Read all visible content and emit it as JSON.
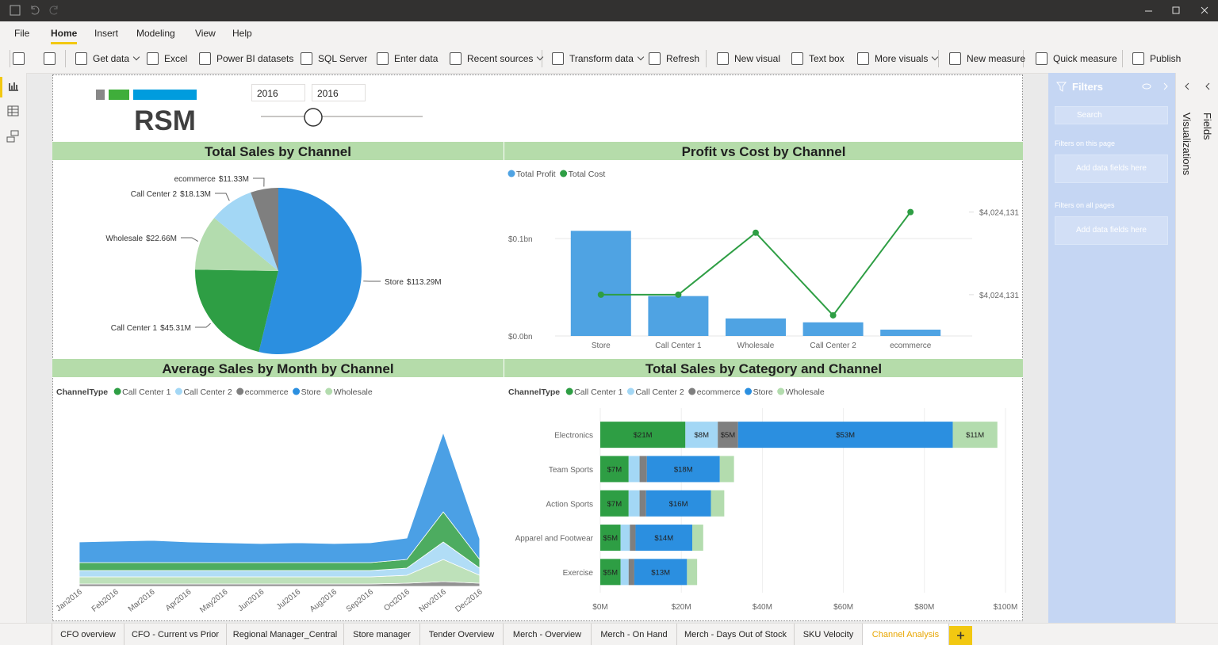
{
  "ribbon": {
    "tabs": [
      "File",
      "Home",
      "Insert",
      "Modeling",
      "View",
      "Help"
    ],
    "active_tab": 1,
    "buttons": [
      {
        "label": "Get data",
        "dropdown": true
      },
      {
        "label": "Excel"
      },
      {
        "label": "Power BI datasets"
      },
      {
        "label": "SQL Server"
      },
      {
        "label": "Enter data"
      },
      {
        "label": "Recent sources",
        "dropdown": true
      },
      {
        "label": "Transform data",
        "dropdown": true
      },
      {
        "label": "Refresh"
      },
      {
        "label": "New visual"
      },
      {
        "label": "Text box"
      },
      {
        "label": "More visuals",
        "dropdown": true
      },
      {
        "label": "New measure"
      },
      {
        "label": "Quick measure"
      },
      {
        "label": "Publish"
      }
    ]
  },
  "report": {
    "logo": "RSM",
    "slicer": {
      "from": "2016",
      "to": "2016"
    }
  },
  "chart_data": [
    {
      "type": "pie",
      "title": "Total Sales by Channel",
      "categories": [
        "Store",
        "Call Center 1",
        "Wholesale",
        "Call Center 2",
        "ecommerce"
      ],
      "values": [
        113.29,
        45.31,
        22.66,
        18.13,
        11.33
      ],
      "value_labels": [
        "$113.29M",
        "$45.31M",
        "$22.66M",
        "$18.13M",
        "$11.33M"
      ],
      "colors": [
        "#2b8fe0",
        "#2e9e44",
        "#b3dcae",
        "#a3d7f5",
        "#7f7f7f"
      ]
    },
    {
      "type": "combo",
      "title": "Profit vs Cost by Channel",
      "categories": [
        "Store",
        "Call Center 1",
        "Wholesale",
        "Call Center 2",
        "ecommerce"
      ],
      "series": [
        {
          "name": "Total Profit",
          "type": "bar",
          "color": "#4fa3e3",
          "values": [
            0.108,
            0.041,
            0.018,
            0.014,
            0.0065
          ]
        },
        {
          "name": "Total Cost",
          "type": "line",
          "axis": "y2",
          "color": "#2e9e44",
          "values": [
            4024130.6,
            4024130.6,
            4024131.2,
            4024130.4,
            4024131.4
          ]
        }
      ],
      "ylim": [
        0,
        0.14
      ],
      "yticks": [
        {
          "value": 0,
          "label": "$0.0bn"
        },
        {
          "value": 0.1,
          "label": "$0.1bn"
        }
      ],
      "y2lim": [
        4024130.2,
        4024131.52
      ],
      "y2ticks": [
        {
          "value": 4024130.6,
          "label": "$4,024,131"
        },
        {
          "value": 4024131.4,
          "label": "$4,024,131"
        }
      ],
      "grid": true
    },
    {
      "type": "area",
      "title": "Average Sales by Month by Channel",
      "legend_title": "ChannelType",
      "categories": [
        "Jan2016",
        "Feb2016",
        "Mar2016",
        "Apr2016",
        "May2016",
        "Jun2016",
        "Jul2016",
        "Aug2016",
        "Sep2016",
        "Oct2016",
        "Nov2016",
        "Dec2016"
      ],
      "series": [
        {
          "name": "Call Center 1",
          "color": "#2e9e44",
          "values": [
            10,
            10,
            10,
            10,
            10,
            10,
            10,
            10,
            10,
            11,
            38,
            11
          ]
        },
        {
          "name": "Call Center 2",
          "color": "#a3d7f5",
          "values": [
            8,
            8,
            8,
            8,
            8,
            8,
            8,
            8,
            8,
            9,
            22,
            9
          ]
        },
        {
          "name": "ecommerce",
          "color": "#7f7f7f",
          "values": [
            3,
            3,
            3,
            3,
            3,
            3,
            3,
            3,
            3,
            4,
            6,
            4
          ]
        },
        {
          "name": "Store",
          "color": "#2b8fe0",
          "values": [
            26,
            27,
            28,
            26,
            25,
            24,
            25,
            24,
            25,
            27,
            100,
            26
          ]
        },
        {
          "name": "Wholesale",
          "color": "#b3dcae",
          "values": [
            9,
            9,
            9,
            9,
            9,
            9,
            9,
            9,
            9,
            10,
            28,
            10
          ]
        }
      ],
      "ylim": [
        0,
        200
      ]
    },
    {
      "type": "stacked_bar",
      "title": "Total Sales by Category and Channel",
      "legend_title": "ChannelType",
      "categories": [
        "Electronics",
        "Team Sports",
        "Action Sports",
        "Apparel and Footwear",
        "Exercise"
      ],
      "series": [
        {
          "name": "Call Center 1",
          "color": "#2e9e44",
          "values": [
            21,
            7,
            7,
            5,
            5
          ],
          "value_labels": [
            "$21M",
            "$7M",
            "$7M",
            "$5M",
            "$5M"
          ]
        },
        {
          "name": "Call Center 2",
          "color": "#a3d7f5",
          "values": [
            8,
            2.7,
            2.7,
            2.3,
            2
          ],
          "value_labels": [
            "$8M",
            null,
            null,
            null,
            null
          ]
        },
        {
          "name": "ecommerce",
          "color": "#7f7f7f",
          "values": [
            5,
            1.8,
            1.6,
            1.4,
            1.4
          ],
          "value_labels": [
            "$5M",
            null,
            null,
            null,
            null
          ]
        },
        {
          "name": "Store",
          "color": "#2b8fe0",
          "values": [
            53,
            18,
            16,
            14,
            13
          ],
          "value_labels": [
            "$53M",
            "$18M",
            "$16M",
            "$14M",
            "$13M"
          ]
        },
        {
          "name": "Wholesale",
          "color": "#b3dcae",
          "values": [
            11,
            3.5,
            3.3,
            2.7,
            2.5
          ],
          "value_labels": [
            "$11M",
            null,
            null,
            null,
            null
          ]
        }
      ],
      "xlim": [
        0,
        100
      ],
      "xticks": [
        {
          "value": 0,
          "label": "$0M"
        },
        {
          "value": 20,
          "label": "$20M"
        },
        {
          "value": 40,
          "label": "$40M"
        },
        {
          "value": 60,
          "label": "$60M"
        },
        {
          "value": 80,
          "label": "$80M"
        },
        {
          "value": 100,
          "label": "$100M"
        }
      ],
      "grid": true
    }
  ],
  "filters": {
    "title": "Filters",
    "search": "Search",
    "sections": [
      {
        "title": "Filters on this page",
        "placeholder": "Add data fields here"
      },
      {
        "title": "Filters on all pages",
        "placeholder": "Add data fields here"
      }
    ]
  },
  "panes": [
    "Visualizations",
    "Fields"
  ],
  "page_tabs": {
    "tabs": [
      "CFO overview",
      "CFO - Current vs Prior",
      "Regional Manager_Central",
      "Store manager",
      "Tender Overview",
      "Merch - Overview",
      "Merch - On Hand",
      "Merch - Days Out of Stock",
      "SKU Velocity",
      "Channel Analysis"
    ],
    "active": 9
  }
}
